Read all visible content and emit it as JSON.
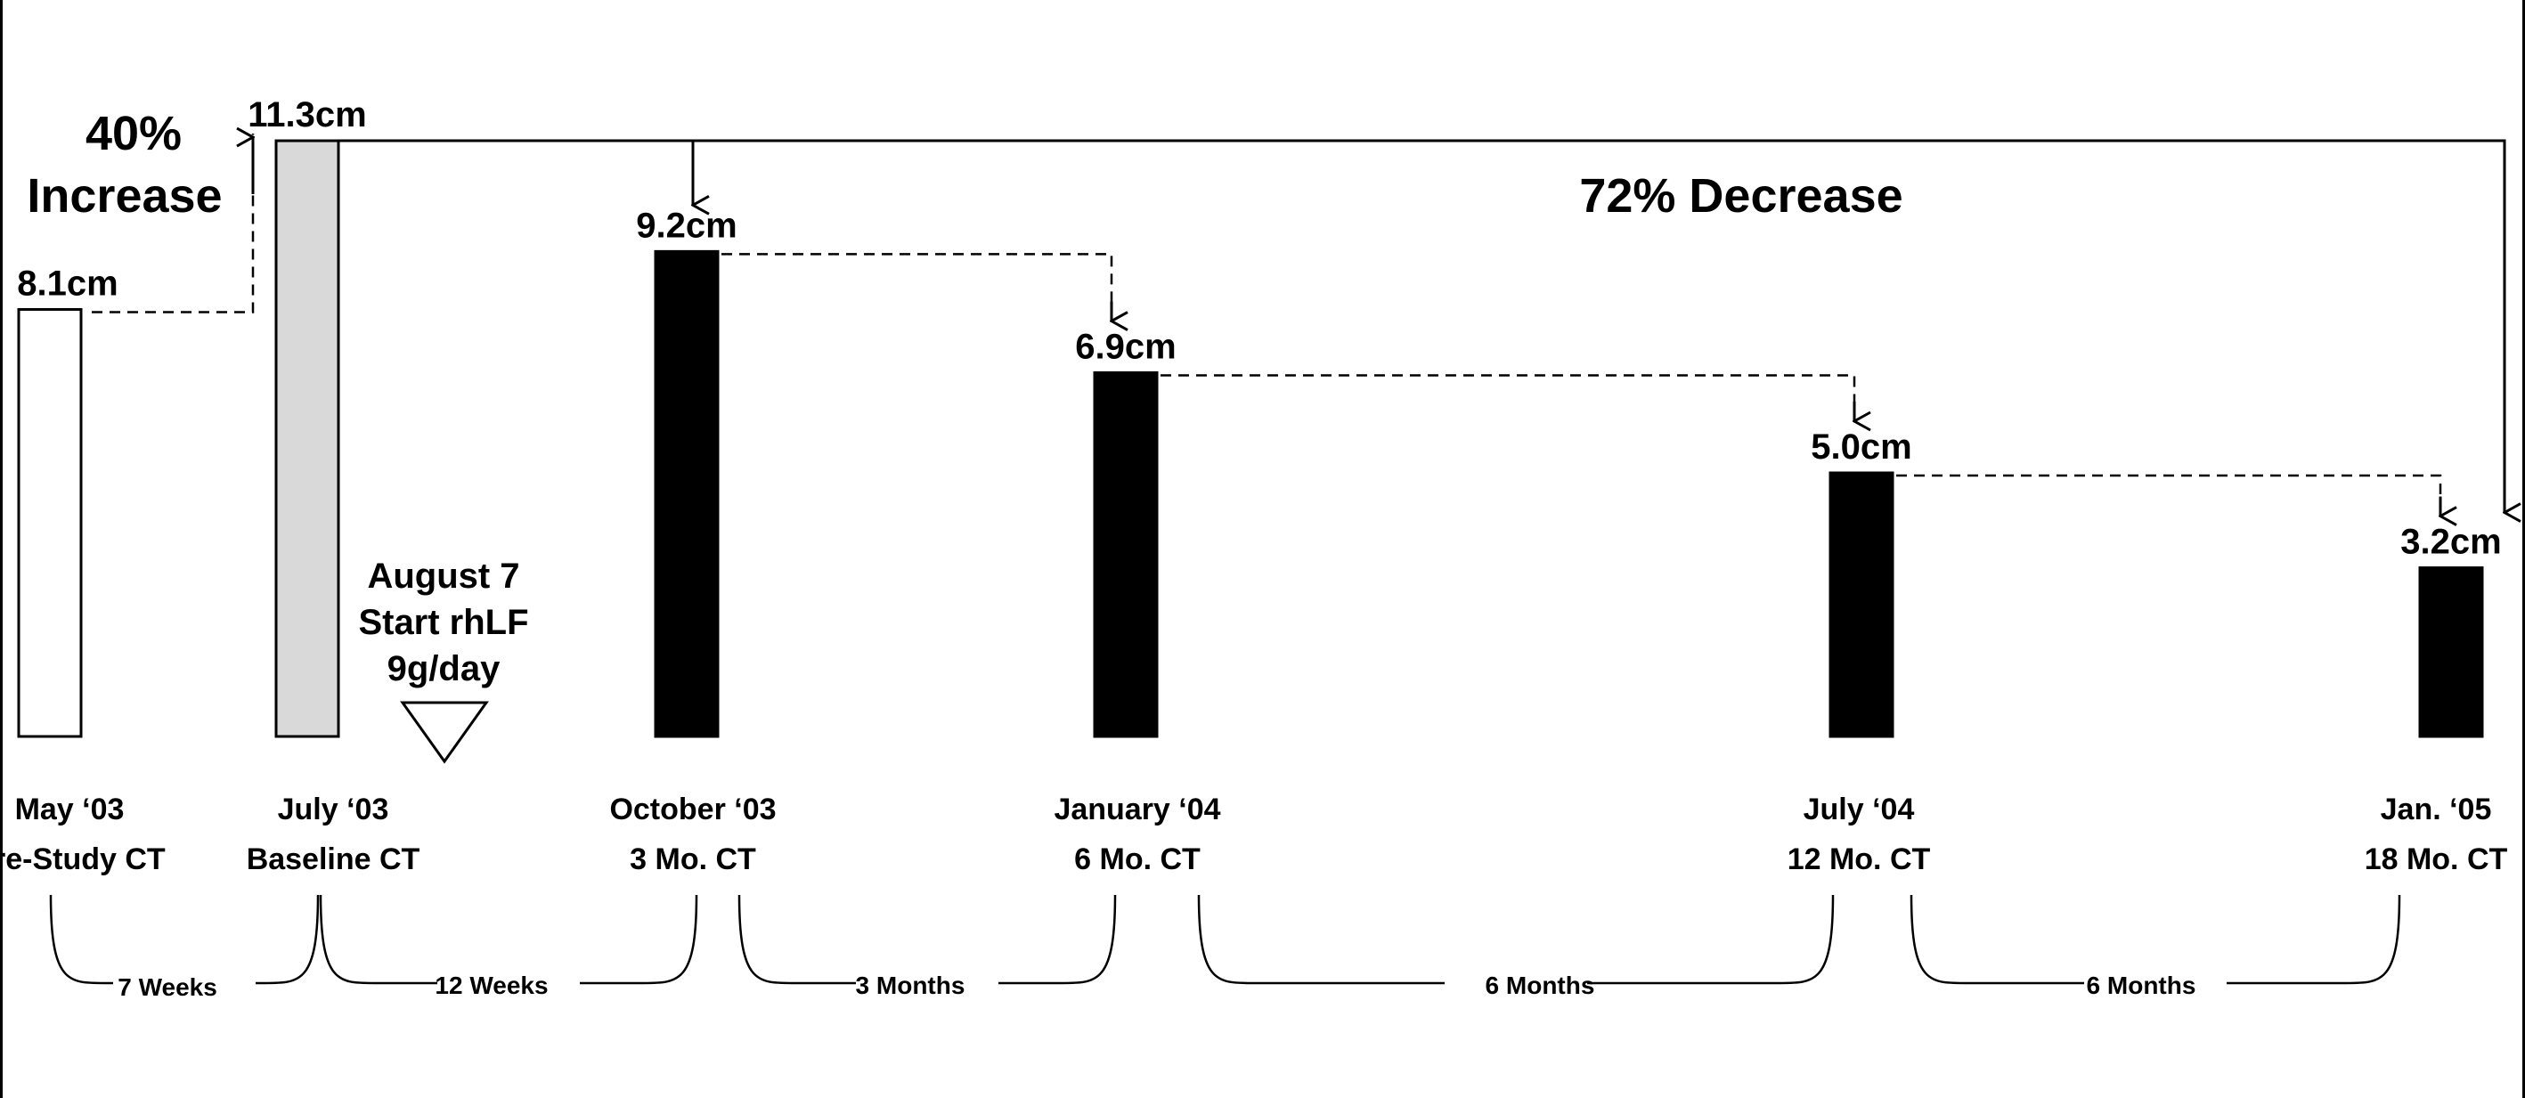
{
  "chart_data": {
    "type": "bar",
    "unit": "cm",
    "categories": [
      {
        "date": "May ‘03",
        "scan": "Pre-Study CT"
      },
      {
        "date": "July ‘03",
        "scan": "Baseline CT"
      },
      {
        "date": "October ‘03",
        "scan": "3 Mo. CT"
      },
      {
        "date": "January ‘04",
        "scan": "6 Mo. CT"
      },
      {
        "date": "July ‘04",
        "scan": "12 Mo. CT"
      },
      {
        "date": "Jan. ‘05",
        "scan": "18 Mo. CT"
      }
    ],
    "values": [
      8.1,
      11.3,
      9.2,
      6.9,
      5.0,
      3.2
    ],
    "value_labels": [
      "8.1cm",
      "11.3cm",
      "9.2cm",
      "6.9cm",
      "5.0cm",
      "3.2cm"
    ],
    "bar_styles": [
      "outline",
      "gray",
      "black",
      "black",
      "black",
      "black"
    ],
    "colors": {
      "outline": "#ffffff",
      "gray": "#d9d9d9",
      "black": "#000000",
      "stroke": "#000000"
    },
    "annotations": {
      "increase": {
        "line1": "40%",
        "line2": "Increase"
      },
      "decrease": "72% Decrease",
      "treatment": {
        "line1": "August 7",
        "line2": "Start rhLF",
        "line3": "9g/day"
      }
    },
    "intervals": [
      "7 Weeks",
      "12 Weeks",
      "3 Months",
      "6 Months",
      "6 Months"
    ]
  }
}
